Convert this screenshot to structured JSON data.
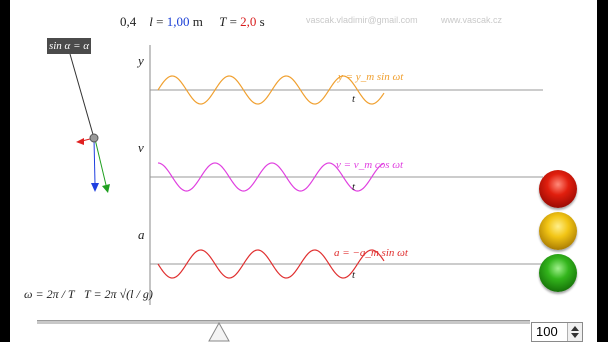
{
  "header": {
    "amplitude_value": "0,4",
    "length_label": "l",
    "length_value": "1,00",
    "length_unit": "m",
    "period_label": "T",
    "period_value": "2,0",
    "period_unit": "s",
    "email_watermark": "vascak.vladimir@gmail.com",
    "site_watermark": "www.vascak.cz"
  },
  "pendulum": {
    "approximation_badge": "sin α = α",
    "arrow_colors": {
      "force": "#e02020",
      "velocity": "#1f3fe0",
      "acceleration": "#20a020"
    }
  },
  "graphs": [
    {
      "axis_label": "y",
      "equation": "y = y_m sin ωt",
      "time_label": "t",
      "color": "#f0a030",
      "phase": "sin"
    },
    {
      "axis_label": "v",
      "equation": "v = v_m cos ωt",
      "time_label": "t",
      "color": "#e040e0",
      "phase": "cos"
    },
    {
      "axis_label": "a",
      "equation": "a = −a_m sin ωt",
      "time_label": "t",
      "color": "#e03030",
      "phase": "-sin"
    }
  ],
  "formulas": {
    "omega": "ω = 2π / T",
    "period": "T = 2π √(l / g)"
  },
  "controls": {
    "buttons": [
      {
        "name": "red",
        "color": "#e11f0e"
      },
      {
        "name": "yellow",
        "color": "#f2c515"
      },
      {
        "name": "green",
        "color": "#33b51c"
      }
    ],
    "slider_position": 0.38,
    "stepper_value": "100"
  }
}
